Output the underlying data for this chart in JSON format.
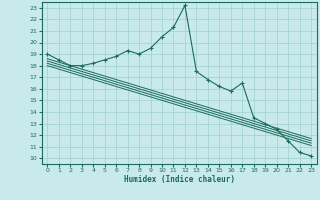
{
  "xlabel": "Humidex (Indice chaleur)",
  "bg_color": "#c8eaea",
  "grid_color": "#a0d0d0",
  "line_color": "#1a6b5a",
  "xlim": [
    -0.5,
    23.5
  ],
  "ylim": [
    9.5,
    23.5
  ],
  "xticks": [
    0,
    1,
    2,
    3,
    4,
    5,
    6,
    7,
    8,
    9,
    10,
    11,
    12,
    13,
    14,
    15,
    16,
    17,
    18,
    19,
    20,
    21,
    22,
    23
  ],
  "yticks": [
    10,
    11,
    12,
    13,
    14,
    15,
    16,
    17,
    18,
    19,
    20,
    21,
    22,
    23
  ],
  "main_line": [
    19.0,
    18.5,
    18.0,
    18.0,
    18.2,
    18.5,
    18.8,
    19.3,
    19.0,
    19.5,
    20.5,
    21.3,
    23.2,
    17.5,
    16.8,
    16.2,
    15.8,
    16.5,
    13.5,
    13.0,
    12.5,
    11.5,
    10.5,
    10.2
  ],
  "ref_lines": [
    [
      18.0,
      17.7,
      17.4,
      17.1,
      16.8,
      16.5,
      16.2,
      15.9,
      15.6,
      15.3,
      15.0,
      14.7,
      14.4,
      14.1,
      13.8,
      13.5,
      13.2,
      12.9,
      12.6,
      12.3,
      12.0,
      11.7,
      11.4,
      11.1
    ],
    [
      18.2,
      17.9,
      17.6,
      17.3,
      17.0,
      16.7,
      16.4,
      16.1,
      15.8,
      15.5,
      15.2,
      14.9,
      14.6,
      14.3,
      14.0,
      13.7,
      13.4,
      13.1,
      12.8,
      12.5,
      12.2,
      11.9,
      11.6,
      11.3
    ],
    [
      18.4,
      18.1,
      17.8,
      17.5,
      17.2,
      16.9,
      16.6,
      16.3,
      16.0,
      15.7,
      15.4,
      15.1,
      14.8,
      14.5,
      14.2,
      13.9,
      13.6,
      13.3,
      13.0,
      12.7,
      12.4,
      12.1,
      11.8,
      11.5
    ],
    [
      18.6,
      18.3,
      18.0,
      17.7,
      17.4,
      17.1,
      16.8,
      16.5,
      16.2,
      15.9,
      15.6,
      15.3,
      15.0,
      14.7,
      14.4,
      14.1,
      13.8,
      13.5,
      13.2,
      12.9,
      12.6,
      12.3,
      12.0,
      11.7
    ]
  ]
}
